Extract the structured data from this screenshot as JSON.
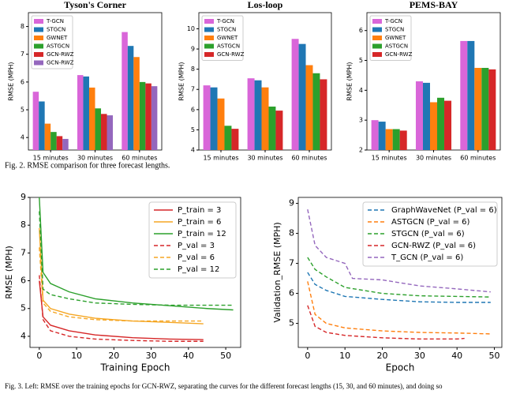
{
  "chart_data": [
    {
      "type": "bar",
      "title": "Tyson's Corner",
      "ylabel": "RMSE (MPH)",
      "categories": [
        "15 minutes",
        "30 minutes",
        "60 minutes"
      ],
      "ylim": [
        3.55,
        8.5
      ],
      "yticks": [
        4,
        5,
        6,
        7,
        8
      ],
      "series": [
        {
          "name": "T-GCN",
          "color": "#d966d9",
          "values": [
            5.65,
            6.25,
            7.8
          ]
        },
        {
          "name": "STGCN",
          "color": "#1f77b4",
          "values": [
            5.3,
            6.2,
            7.3
          ]
        },
        {
          "name": "GWNET",
          "color": "#ff7f0e",
          "values": [
            4.5,
            5.8,
            6.9
          ]
        },
        {
          "name": "ASTGCN",
          "color": "#2ca02c",
          "values": [
            4.2,
            5.05,
            6.0
          ]
        },
        {
          "name": "GCN-RWZ",
          "color": "#d62728",
          "values": [
            4.05,
            4.85,
            5.95
          ]
        },
        {
          "name": "GCN-RWZ",
          "color": "#9467bd",
          "values": [
            3.95,
            4.8,
            5.85
          ]
        }
      ]
    },
    {
      "type": "bar",
      "title": "Los-loop",
      "ylabel": "RMSE (MPH)",
      "categories": [
        "15 minutes",
        "30 minutes",
        "60 minutes"
      ],
      "ylim": [
        4,
        10.8
      ],
      "yticks": [
        4,
        5,
        6,
        7,
        8,
        9,
        10
      ],
      "series": [
        {
          "name": "T-GCN",
          "color": "#d966d9",
          "values": [
            7.2,
            7.55,
            9.5
          ]
        },
        {
          "name": "STGCN",
          "color": "#1f77b4",
          "values": [
            7.1,
            7.45,
            9.25
          ]
        },
        {
          "name": "GWNET",
          "color": "#ff7f0e",
          "values": [
            6.55,
            7.1,
            8.2
          ]
        },
        {
          "name": "ASTGCN",
          "color": "#2ca02c",
          "values": [
            5.2,
            6.15,
            7.8
          ]
        },
        {
          "name": "GCN-RWZ",
          "color": "#d62728",
          "values": [
            5.05,
            5.95,
            7.5
          ]
        }
      ]
    },
    {
      "type": "bar",
      "title": "PEMS-BAY",
      "ylabel": "RMSE (MPH)",
      "categories": [
        "15 minutes",
        "30 minutes",
        "60 minutes"
      ],
      "ylim": [
        2,
        6.6
      ],
      "yticks": [
        2,
        3,
        4,
        5,
        6
      ],
      "series": [
        {
          "name": "T-GCN",
          "color": "#d966d9",
          "values": [
            3.0,
            4.3,
            5.65
          ]
        },
        {
          "name": "STGCN",
          "color": "#1f77b4",
          "values": [
            2.95,
            4.25,
            5.65
          ]
        },
        {
          "name": "GWNET",
          "color": "#ff7f0e",
          "values": [
            2.7,
            3.6,
            4.75
          ]
        },
        {
          "name": "ASTGCN",
          "color": "#2ca02c",
          "values": [
            2.7,
            3.75,
            4.75
          ]
        },
        {
          "name": "GCN-RWZ",
          "color": "#d62728",
          "values": [
            2.65,
            3.65,
            4.7
          ]
        }
      ]
    },
    {
      "type": "line",
      "xlabel": "Training Epoch",
      "ylabel": "RMSE (MPH)",
      "xlim": [
        -2.5,
        54
      ],
      "ylim": [
        3.6,
        9
      ],
      "xticks": [
        0,
        10,
        20,
        30,
        40,
        50
      ],
      "yticks": [
        4,
        5,
        6,
        7,
        8,
        9
      ],
      "series": [
        {
          "name": "P_train = 3",
          "color": "#d62728",
          "dash": false,
          "x": [
            0,
            1,
            3,
            8,
            15,
            25,
            35,
            44
          ],
          "values": [
            6.0,
            4.7,
            4.4,
            4.2,
            4.05,
            3.95,
            3.9,
            3.88
          ]
        },
        {
          "name": "P_train = 6",
          "color": "#f5a623",
          "dash": false,
          "x": [
            0,
            1,
            3,
            8,
            15,
            25,
            35,
            44
          ],
          "values": [
            7.9,
            5.3,
            5.0,
            4.8,
            4.65,
            4.55,
            4.5,
            4.45
          ]
        },
        {
          "name": "P_train = 12",
          "color": "#2ca02c",
          "dash": false,
          "x": [
            0,
            1,
            3,
            8,
            15,
            25,
            35,
            45,
            52
          ],
          "values": [
            9,
            6.3,
            5.9,
            5.6,
            5.35,
            5.2,
            5.1,
            5.0,
            4.95
          ]
        },
        {
          "name": "P_val = 3",
          "color": "#d62728",
          "dash": true,
          "x": [
            0,
            1,
            3,
            8,
            15,
            25,
            35,
            44
          ],
          "values": [
            6.2,
            4.6,
            4.2,
            4.0,
            3.9,
            3.85,
            3.82,
            3.82
          ]
        },
        {
          "name": "P_val = 6",
          "color": "#f5a623",
          "dash": true,
          "x": [
            0,
            1,
            3,
            8,
            15,
            25,
            35,
            44
          ],
          "values": [
            7.2,
            5.2,
            4.9,
            4.7,
            4.6,
            4.55,
            4.55,
            4.55
          ]
        },
        {
          "name": "P_val = 12",
          "color": "#2ca02c",
          "dash": true,
          "x": [
            0,
            1,
            3,
            8,
            15,
            25,
            35,
            52
          ],
          "values": [
            8.5,
            5.7,
            5.5,
            5.35,
            5.2,
            5.15,
            5.12,
            5.12
          ]
        }
      ]
    },
    {
      "type": "line",
      "xlabel": "Epoch",
      "ylabel": "Validation_RMSE (MPH)",
      "xlim": [
        -2.5,
        52
      ],
      "ylim": [
        4.2,
        9.2
      ],
      "xticks": [
        0,
        10,
        20,
        30,
        40,
        50
      ],
      "yticks": [
        5,
        6,
        7,
        8,
        9
      ],
      "series": [
        {
          "name": "GraphWaveNet (P_val = 6)",
          "color": "#1f77b4",
          "dash": true,
          "x": [
            0,
            2,
            5,
            10,
            20,
            30,
            40,
            49
          ],
          "values": [
            6.7,
            6.3,
            6.1,
            5.9,
            5.8,
            5.72,
            5.7,
            5.7
          ]
        },
        {
          "name": "ASTGCN (P_val = 6)",
          "color": "#ff7f0e",
          "dash": true,
          "x": [
            0,
            2,
            5,
            10,
            20,
            30,
            40,
            49
          ],
          "values": [
            6.4,
            5.3,
            5.0,
            4.85,
            4.75,
            4.7,
            4.68,
            4.65
          ]
        },
        {
          "name": "STGCN (P_val = 6)",
          "color": "#2ca02c",
          "dash": true,
          "x": [
            0,
            2,
            5,
            10,
            20,
            30,
            40,
            49
          ],
          "values": [
            7.2,
            6.8,
            6.55,
            6.2,
            6.0,
            5.92,
            5.9,
            5.88
          ]
        },
        {
          "name": "GCN-RWZ (P_val = 6)",
          "color": "#d62728",
          "dash": true,
          "x": [
            0,
            2,
            5,
            10,
            20,
            30,
            40,
            42
          ],
          "values": [
            5.6,
            4.9,
            4.7,
            4.6,
            4.52,
            4.48,
            4.48,
            4.5
          ]
        },
        {
          "name": "T_GCN (P_val = 6)",
          "color": "#9467bd",
          "dash": true,
          "x": [
            0,
            2,
            5,
            10,
            12,
            20,
            30,
            40,
            49
          ],
          "values": [
            8.8,
            7.6,
            7.2,
            7.0,
            6.5,
            6.45,
            6.25,
            6.15,
            6.05
          ]
        }
      ]
    }
  ],
  "captions": [
    "Fig. 2.  RMSE comparison for three forecast lengths.",
    "Fig. 3.  Left: RMSE over the training epochs for GCN-RWZ, separating the curves for the different forecast lengths (15, 30, and 60 minutes), and doing so"
  ]
}
